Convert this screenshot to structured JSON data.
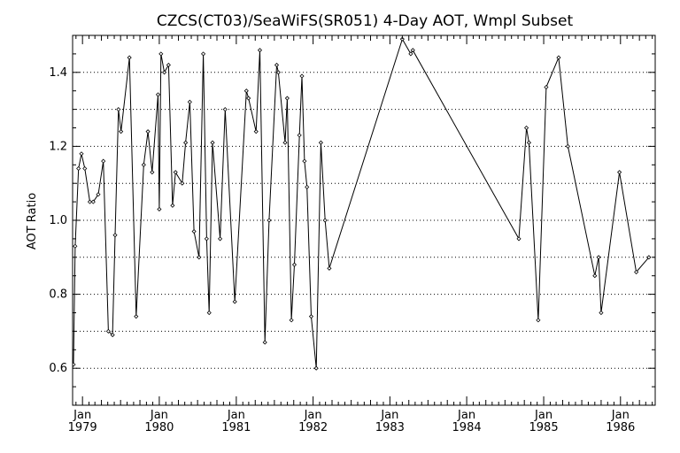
{
  "chart_data": {
    "type": "line",
    "title": "CZCS(CT03)/SeaWiFS(SR051) 4-Day AOT, Wmpl Subset",
    "xlabel": "",
    "ylabel": "AOT Ratio",
    "ylim": [
      0.5,
      1.5
    ],
    "xlim": [
      "1978-11-15",
      "1986-06-15"
    ],
    "grid": true,
    "y_ticks": [
      0.6,
      0.8,
      1.0,
      1.2,
      1.4
    ],
    "y_tick_labels": [
      "0.6",
      "0.8",
      "1.0",
      "1.2",
      "1.4"
    ],
    "x_ticks": [
      {
        "month": "Jan",
        "year": "1979",
        "date": "1979-01-01"
      },
      {
        "month": "Jan",
        "year": "1980",
        "date": "1980-01-01"
      },
      {
        "month": "Jan",
        "year": "1981",
        "date": "1981-01-01"
      },
      {
        "month": "Jan",
        "year": "1982",
        "date": "1982-01-01"
      },
      {
        "month": "Jan",
        "year": "1983",
        "date": "1983-01-01"
      },
      {
        "month": "Jan",
        "year": "1984",
        "date": "1984-01-01"
      },
      {
        "month": "Jan",
        "year": "1985",
        "date": "1985-01-01"
      },
      {
        "month": "Jan",
        "year": "1986",
        "date": "1986-01-01"
      }
    ],
    "series": [
      {
        "x": [
          "1978-11-19",
          "1978-11-27",
          "1978-12-13",
          "1978-12-27",
          "1979-01-12",
          "1979-02-05",
          "1979-02-21",
          "1979-03-17",
          "1979-04-10",
          "1979-05-04",
          "1979-05-24",
          "1979-06-05",
          "1979-06-21",
          "1979-07-03",
          "1979-08-12",
          "1979-09-13",
          "1979-10-19",
          "1979-11-08",
          "1979-11-28",
          "1979-12-26",
          "1980-01-01",
          "1980-01-09",
          "1980-01-25",
          "1980-02-14",
          "1980-03-04",
          "1980-03-18",
          "1980-04-19",
          "1980-05-05",
          "1980-05-25",
          "1980-06-14",
          "1980-07-08",
          "1980-07-28",
          "1980-08-13",
          "1980-08-25",
          "1980-09-10",
          "1980-10-16",
          "1980-11-09",
          "1980-12-25",
          "1981-02-18",
          "1981-02-28",
          "1981-04-05",
          "1981-04-23",
          "1981-05-17",
          "1981-06-06",
          "1981-07-12",
          "1981-07-20",
          "1981-08-21",
          "1981-08-31",
          "1981-09-20",
          "1981-10-04",
          "1981-10-28",
          "1981-11-09",
          "1981-11-21",
          "1981-12-03",
          "1981-12-23",
          "1982-01-16",
          "1982-02-07",
          "1982-02-27",
          "1982-03-19",
          "1983-03-01",
          "1983-04-10",
          "1983-04-20",
          "1984-09-05",
          "1984-10-11",
          "1984-10-23",
          "1984-12-06",
          "1985-01-13",
          "1985-03-13",
          "1985-04-26",
          "1985-09-01",
          "1985-09-19",
          "1985-10-01",
          "1985-12-27",
          "1986-03-17",
          "1986-05-16"
        ],
        "y": [
          0.61,
          0.93,
          1.14,
          1.18,
          1.14,
          1.05,
          1.05,
          1.07,
          1.16,
          0.7,
          0.69,
          0.96,
          1.3,
          1.24,
          1.44,
          0.74,
          1.15,
          1.24,
          1.13,
          1.34,
          1.03,
          1.45,
          1.4,
          1.42,
          1.04,
          1.13,
          1.1,
          1.21,
          1.32,
          0.97,
          0.9,
          1.45,
          0.95,
          0.75,
          1.21,
          0.95,
          1.3,
          0.78,
          1.35,
          1.33,
          1.24,
          1.46,
          0.67,
          1.0,
          1.42,
          1.4,
          1.21,
          1.33,
          0.73,
          0.88,
          1.23,
          1.39,
          1.16,
          1.09,
          0.74,
          0.6,
          1.21,
          1.0,
          0.87,
          1.49,
          1.45,
          1.46,
          0.95,
          1.25,
          1.21,
          0.73,
          1.36,
          1.44,
          1.2,
          0.85,
          0.9,
          0.75,
          1.13,
          0.86,
          0.9
        ]
      }
    ]
  }
}
